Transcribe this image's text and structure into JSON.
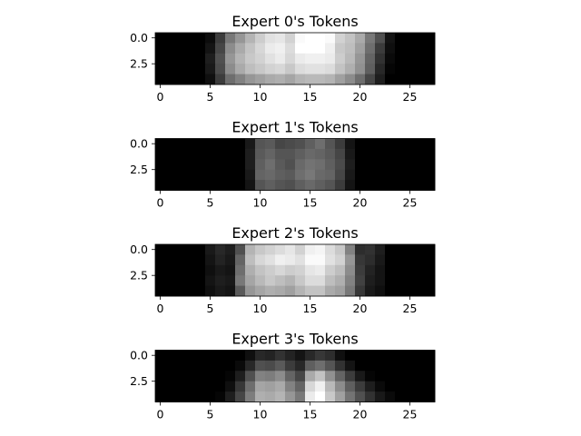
{
  "chart_data": [
    {
      "type": "heatmap",
      "title": "Expert 0's Tokens",
      "xticks": [
        "0",
        "5",
        "10",
        "15",
        "20",
        "25"
      ],
      "yticks": [
        "0.0",
        "2.5"
      ],
      "xlim": [
        -0.5,
        27.5
      ],
      "ylim": [
        4.5,
        -0.5
      ],
      "colormap": "gray",
      "values": [
        [
          0,
          0,
          0,
          0,
          0,
          12,
          60,
          120,
          150,
          180,
          205,
          225,
          230,
          210,
          250,
          255,
          255,
          250,
          210,
          195,
          170,
          120,
          80,
          20,
          0,
          0,
          0,
          0
        ],
        [
          0,
          0,
          0,
          0,
          0,
          20,
          70,
          140,
          170,
          195,
          215,
          235,
          240,
          220,
          255,
          255,
          255,
          240,
          200,
          190,
          160,
          110,
          60,
          15,
          0,
          0,
          0,
          0
        ],
        [
          0,
          0,
          0,
          0,
          0,
          30,
          80,
          150,
          180,
          200,
          210,
          225,
          235,
          215,
          235,
          240,
          240,
          235,
          205,
          185,
          150,
          100,
          50,
          10,
          0,
          0,
          0,
          0
        ],
        [
          0,
          0,
          0,
          0,
          0,
          25,
          75,
          140,
          170,
          190,
          200,
          210,
          215,
          200,
          220,
          225,
          225,
          220,
          195,
          175,
          145,
          95,
          40,
          5,
          0,
          0,
          0,
          0
        ],
        [
          0,
          0,
          0,
          0,
          0,
          15,
          60,
          110,
          130,
          150,
          160,
          170,
          175,
          165,
          180,
          185,
          185,
          180,
          160,
          140,
          110,
          70,
          30,
          0,
          0,
          0,
          0,
          0
        ]
      ]
    },
    {
      "type": "heatmap",
      "title": "Expert 1's Tokens",
      "xticks": [
        "0",
        "5",
        "10",
        "15",
        "20",
        "25"
      ],
      "yticks": [
        "0.0",
        "2.5"
      ],
      "xlim": [
        -0.5,
        27.5
      ],
      "ylim": [
        4.5,
        -0.5
      ],
      "colormap": "gray",
      "values": [
        [
          0,
          0,
          0,
          0,
          0,
          0,
          0,
          0,
          0,
          25,
          85,
          90,
          70,
          75,
          80,
          95,
          110,
          85,
          60,
          20,
          0,
          0,
          0,
          0,
          0,
          0,
          0,
          0
        ],
        [
          0,
          0,
          0,
          0,
          0,
          0,
          0,
          0,
          0,
          30,
          90,
          100,
          85,
          85,
          95,
          105,
          100,
          90,
          70,
          25,
          0,
          0,
          0,
          0,
          0,
          0,
          0,
          0
        ],
        [
          0,
          0,
          0,
          0,
          0,
          0,
          0,
          0,
          0,
          30,
          95,
          110,
          90,
          80,
          105,
          115,
          110,
          95,
          75,
          30,
          0,
          0,
          0,
          0,
          0,
          0,
          0,
          0
        ],
        [
          0,
          0,
          0,
          0,
          0,
          0,
          0,
          0,
          0,
          25,
          100,
          105,
          95,
          90,
          110,
          120,
          105,
          100,
          70,
          25,
          0,
          0,
          0,
          0,
          0,
          0,
          0,
          0
        ],
        [
          0,
          0,
          0,
          0,
          0,
          0,
          0,
          0,
          0,
          20,
          85,
          95,
          85,
          80,
          95,
          105,
          95,
          85,
          60,
          20,
          0,
          0,
          0,
          0,
          0,
          0,
          0,
          0
        ]
      ]
    },
    {
      "type": "heatmap",
      "title": "Expert 2's Tokens",
      "xticks": [
        "0",
        "5",
        "10",
        "15",
        "20",
        "25"
      ],
      "yticks": [
        "0.0",
        "2.5"
      ],
      "xlim": [
        -0.5,
        27.5
      ],
      "ylim": [
        4.5,
        -0.5
      ],
      "colormap": "gray",
      "values": [
        [
          0,
          0,
          0,
          0,
          0,
          25,
          40,
          30,
          80,
          180,
          200,
          210,
          220,
          230,
          210,
          240,
          245,
          220,
          200,
          130,
          45,
          50,
          30,
          0,
          0,
          0,
          0,
          0
        ],
        [
          0,
          0,
          0,
          0,
          0,
          20,
          35,
          25,
          100,
          190,
          215,
          225,
          240,
          235,
          225,
          250,
          250,
          225,
          210,
          150,
          55,
          45,
          25,
          0,
          0,
          0,
          0,
          0
        ],
        [
          0,
          0,
          0,
          0,
          0,
          15,
          25,
          20,
          110,
          175,
          195,
          205,
          215,
          205,
          210,
          230,
          235,
          205,
          190,
          140,
          60,
          35,
          20,
          0,
          0,
          0,
          0,
          0
        ],
        [
          0,
          0,
          0,
          0,
          0,
          20,
          30,
          25,
          120,
          165,
          185,
          200,
          190,
          180,
          200,
          220,
          220,
          190,
          175,
          130,
          65,
          30,
          20,
          0,
          0,
          0,
          0,
          0
        ],
        [
          0,
          0,
          0,
          0,
          0,
          15,
          25,
          20,
          90,
          150,
          165,
          175,
          170,
          160,
          180,
          195,
          195,
          170,
          160,
          120,
          55,
          25,
          15,
          0,
          0,
          0,
          0,
          0
        ]
      ]
    },
    {
      "type": "heatmap",
      "title": "Expert 3's Tokens",
      "xticks": [
        "0",
        "5",
        "10",
        "15",
        "20",
        "25"
      ],
      "yticks": [
        "0.0",
        "2.5"
      ],
      "xlim": [
        -0.5,
        27.5
      ],
      "ylim": [
        4.5,
        -0.5
      ],
      "colormap": "gray",
      "values": [
        [
          0,
          0,
          0,
          0,
          0,
          0,
          0,
          0,
          0,
          15,
          40,
          35,
          50,
          35,
          20,
          40,
          55,
          45,
          15,
          0,
          0,
          0,
          0,
          0,
          0,
          0,
          0,
          0
        ],
        [
          0,
          0,
          0,
          0,
          0,
          0,
          0,
          0,
          10,
          40,
          80,
          75,
          90,
          60,
          40,
          95,
          110,
          85,
          50,
          20,
          0,
          0,
          0,
          0,
          0,
          0,
          0,
          0
        ],
        [
          0,
          0,
          0,
          0,
          0,
          0,
          0,
          5,
          30,
          80,
          130,
          125,
          140,
          100,
          70,
          170,
          195,
          145,
          100,
          60,
          25,
          5,
          0,
          0,
          0,
          0,
          0,
          0
        ],
        [
          0,
          0,
          0,
          0,
          0,
          0,
          0,
          15,
          55,
          110,
          165,
          160,
          170,
          130,
          100,
          215,
          240,
          185,
          140,
          95,
          60,
          30,
          10,
          0,
          0,
          0,
          0,
          0
        ],
        [
          0,
          0,
          0,
          0,
          0,
          0,
          5,
          30,
          70,
          125,
          175,
          170,
          180,
          150,
          120,
          235,
          255,
          200,
          160,
          115,
          80,
          50,
          25,
          10,
          0,
          0,
          0,
          0
        ]
      ]
    }
  ]
}
